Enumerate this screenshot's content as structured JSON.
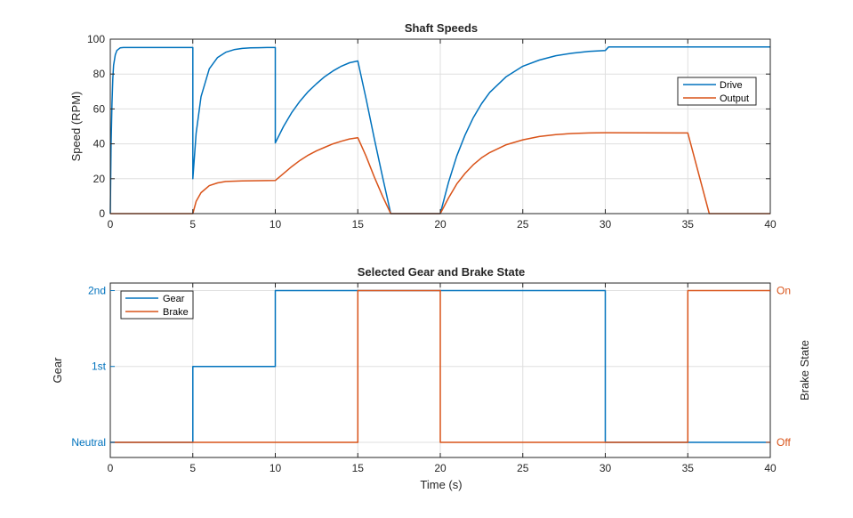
{
  "colors": {
    "drive": "#0072BD",
    "output": "#D95319",
    "axis": "#262626",
    "grid": "#dfdfdf"
  },
  "chart_data": [
    {
      "type": "line",
      "title": "Shaft Speeds",
      "xlabel": "",
      "ylabel": "Speed (RPM)",
      "xlim": [
        0,
        40
      ],
      "ylim": [
        0,
        100
      ],
      "xticks": [
        "0",
        "5",
        "10",
        "15",
        "20",
        "25",
        "30",
        "35",
        "40"
      ],
      "yticks": [
        "0",
        "20",
        "40",
        "60",
        "80",
        "100"
      ],
      "grid": true,
      "legend_position": "right",
      "series": [
        {
          "name": "Drive",
          "x": [
            0,
            0.05,
            0.1,
            0.15,
            0.2,
            0.3,
            0.4,
            0.6,
            0.8,
            1,
            2,
            5,
            5.001,
            5.2,
            5.5,
            6,
            6.5,
            7,
            7.5,
            8,
            8.5,
            9,
            9.5,
            9.999,
            10,
            10.001,
            10.5,
            11,
            11.5,
            12,
            12.5,
            13,
            13.5,
            14,
            14.5,
            15,
            15.5,
            16,
            16.5,
            17,
            20,
            20.5,
            21,
            21.5,
            22,
            22.5,
            23,
            24,
            25,
            26,
            27,
            28,
            29,
            30,
            30.2,
            31,
            35,
            40
          ],
          "y": [
            0,
            40,
            63,
            77,
            85,
            91,
            93.5,
            95,
            95.2,
            95.2,
            95.2,
            95.2,
            20,
            46,
            67,
            83,
            89.5,
            92.5,
            94,
            94.7,
            95,
            95.1,
            95.2,
            95.2,
            95.2,
            40.5,
            50,
            58,
            64.5,
            70,
            74.5,
            78.5,
            81.8,
            84.5,
            86.5,
            87.5,
            66,
            43,
            21,
            0,
            0,
            18,
            33,
            45,
            55,
            63,
            69.5,
            78.5,
            84.5,
            88,
            90.5,
            92,
            93,
            93.5,
            95.5,
            95.5,
            95.5,
            95.5
          ]
        },
        {
          "name": "Output",
          "x": [
            0,
            4.999,
            5,
            5.2,
            5.5,
            6,
            6.5,
            7,
            8,
            9,
            10,
            10.5,
            11,
            11.5,
            12,
            12.5,
            13,
            13.5,
            14,
            14.5,
            15,
            15.5,
            16,
            16.5,
            17,
            20,
            20.5,
            21,
            21.5,
            22,
            22.5,
            23,
            24,
            25,
            26,
            27,
            28,
            29,
            30,
            35,
            36.3,
            40
          ],
          "y": [
            0,
            0,
            0,
            7,
            12,
            16,
            17.6,
            18.4,
            18.8,
            18.9,
            19,
            23,
            27,
            30.5,
            33.5,
            36,
            38,
            40,
            41.5,
            42.8,
            43.5,
            33,
            21,
            10,
            0,
            0,
            9,
            17,
            23,
            28,
            32,
            35,
            39.5,
            42.3,
            44.2,
            45.3,
            45.9,
            46.2,
            46.4,
            46.2,
            0,
            0
          ]
        }
      ]
    },
    {
      "type": "line",
      "title": "Selected Gear and Brake State",
      "xlabel": "Time (s)",
      "ylabel": "Gear",
      "ylabel_right": "Brake State",
      "xlim": [
        0,
        40
      ],
      "ylim": [
        -0.2,
        2.1
      ],
      "xticks": [
        "0",
        "5",
        "10",
        "15",
        "20",
        "25",
        "30",
        "35",
        "40"
      ],
      "yticks_left": [
        {
          "value": 0,
          "label": "Neutral"
        },
        {
          "value": 1,
          "label": "1st"
        },
        {
          "value": 2,
          "label": "2nd"
        }
      ],
      "yticks_right": [
        {
          "value": 0,
          "label": "Off"
        },
        {
          "value": 1,
          "label": "On"
        }
      ],
      "grid": true,
      "legend_position": "top-left",
      "series": [
        {
          "name": "Gear",
          "x": [
            0,
            5,
            5,
            10,
            10,
            30,
            30,
            40
          ],
          "y": [
            0,
            0,
            1,
            1,
            2,
            2,
            0,
            0
          ]
        },
        {
          "name": "Brake",
          "x": [
            0,
            15,
            15,
            20,
            20,
            35,
            35,
            40
          ],
          "y": [
            0,
            0,
            1,
            1,
            0,
            0,
            1,
            1
          ]
        }
      ]
    }
  ]
}
